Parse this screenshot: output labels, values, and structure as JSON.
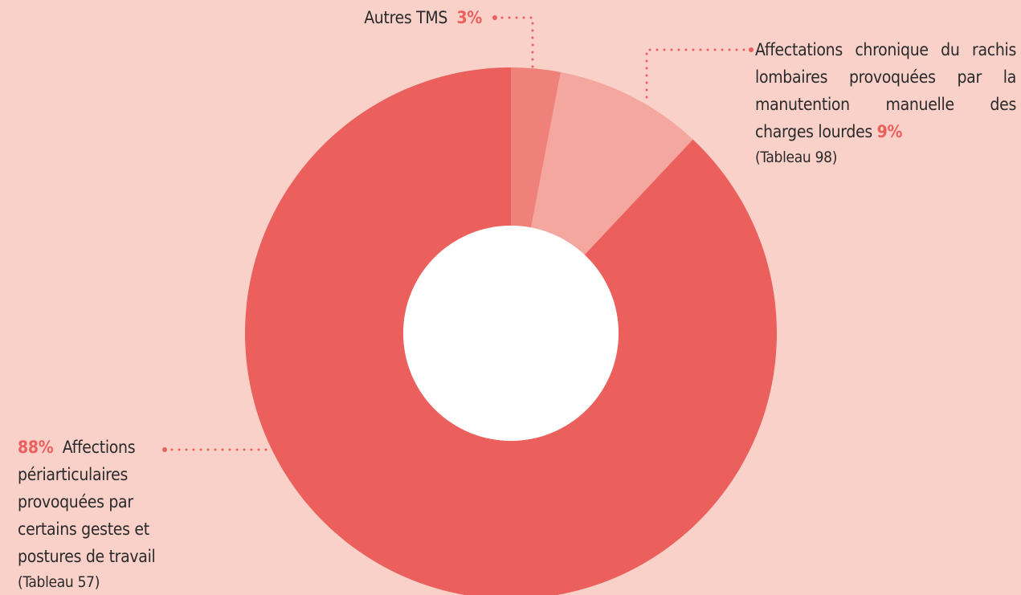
{
  "chart_data": {
    "type": "donut",
    "categories": [
      "Autres TMS",
      "Affectations chronique du rachis lombaires provoquées par la manutention manuelle des charges lourdes",
      "Affections périarticulaires provoquées par certains gestes et postures de travail"
    ],
    "values": [
      3,
      9,
      88
    ],
    "value_labels": [
      "3%",
      "9%",
      "88%"
    ],
    "notes": [
      null,
      "(Tableau 98)",
      "(Tableau 57)"
    ],
    "colors": [
      "#ef817a",
      "#f4a79f",
      "#eb5f5c"
    ]
  }
}
